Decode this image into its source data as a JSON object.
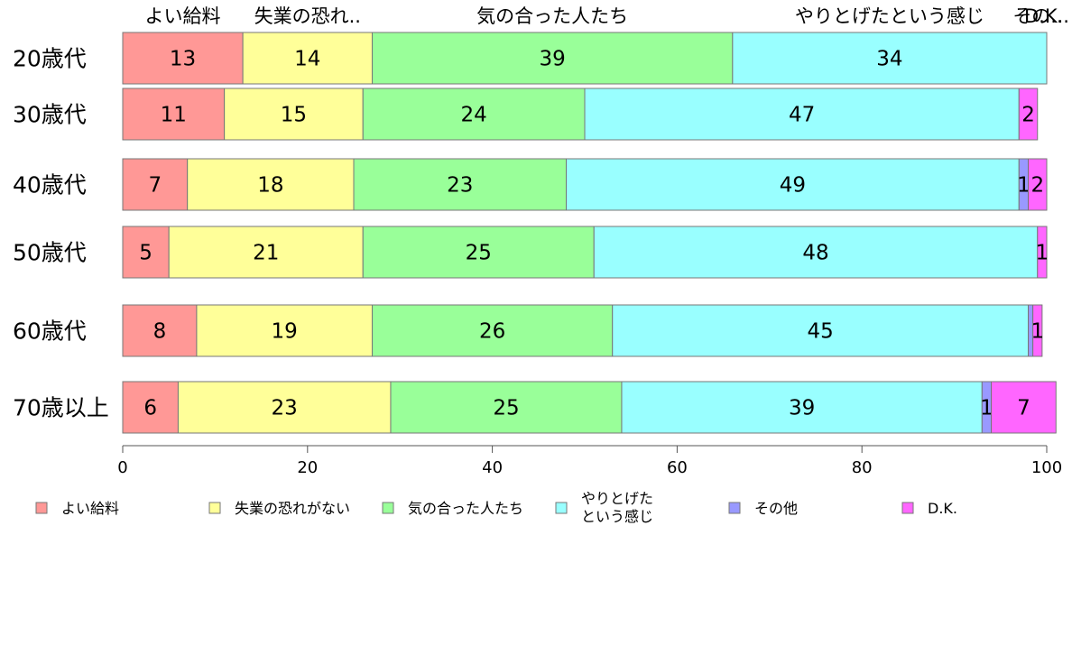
{
  "chart_data": {
    "type": "bar",
    "orientation": "horizontal",
    "stacked": true,
    "categories": [
      "20歳代",
      "30歳代",
      "40歳代",
      "50歳代",
      "60歳代",
      "70歳以上"
    ],
    "series": [
      {
        "name": "よい給料",
        "color": "#FF9896",
        "values": [
          13,
          11,
          7,
          5,
          8,
          6
        ]
      },
      {
        "name": "失業の恐れがない",
        "color": "#FFFF99",
        "values": [
          14,
          15,
          18,
          21,
          19,
          23
        ]
      },
      {
        "name": "気の合った人たち",
        "color": "#99FF99",
        "values": [
          39,
          24,
          23,
          25,
          26,
          25
        ]
      },
      {
        "name": "やりとげたという感じ",
        "color": "#99FFFF",
        "values": [
          34,
          47,
          49,
          48,
          45,
          39
        ]
      },
      {
        "name": "その他",
        "color": "#9999FF",
        "values": [
          0,
          0,
          1,
          0,
          0.5,
          1
        ]
      },
      {
        "name": "D.K.",
        "color": "#FF66FF",
        "values": [
          0,
          2,
          2,
          1,
          1,
          7
        ]
      }
    ],
    "top_labels": [
      "よい給料",
      "失業の恐れ..",
      "気の合った人たち",
      "やりとげたという感じ",
      "その..",
      "D.K.."
    ],
    "legend_lines": [
      [
        "よい給料"
      ],
      [
        "失業の恐れがない"
      ],
      [
        "気の合った人たち"
      ],
      [
        "やりとげた",
        "という感じ"
      ],
      [
        "その他"
      ],
      [
        "D.K."
      ]
    ],
    "xlim": [
      0,
      100
    ],
    "xticks": [
      0,
      20,
      40,
      60,
      80,
      100
    ],
    "legend_position": "bottom"
  }
}
